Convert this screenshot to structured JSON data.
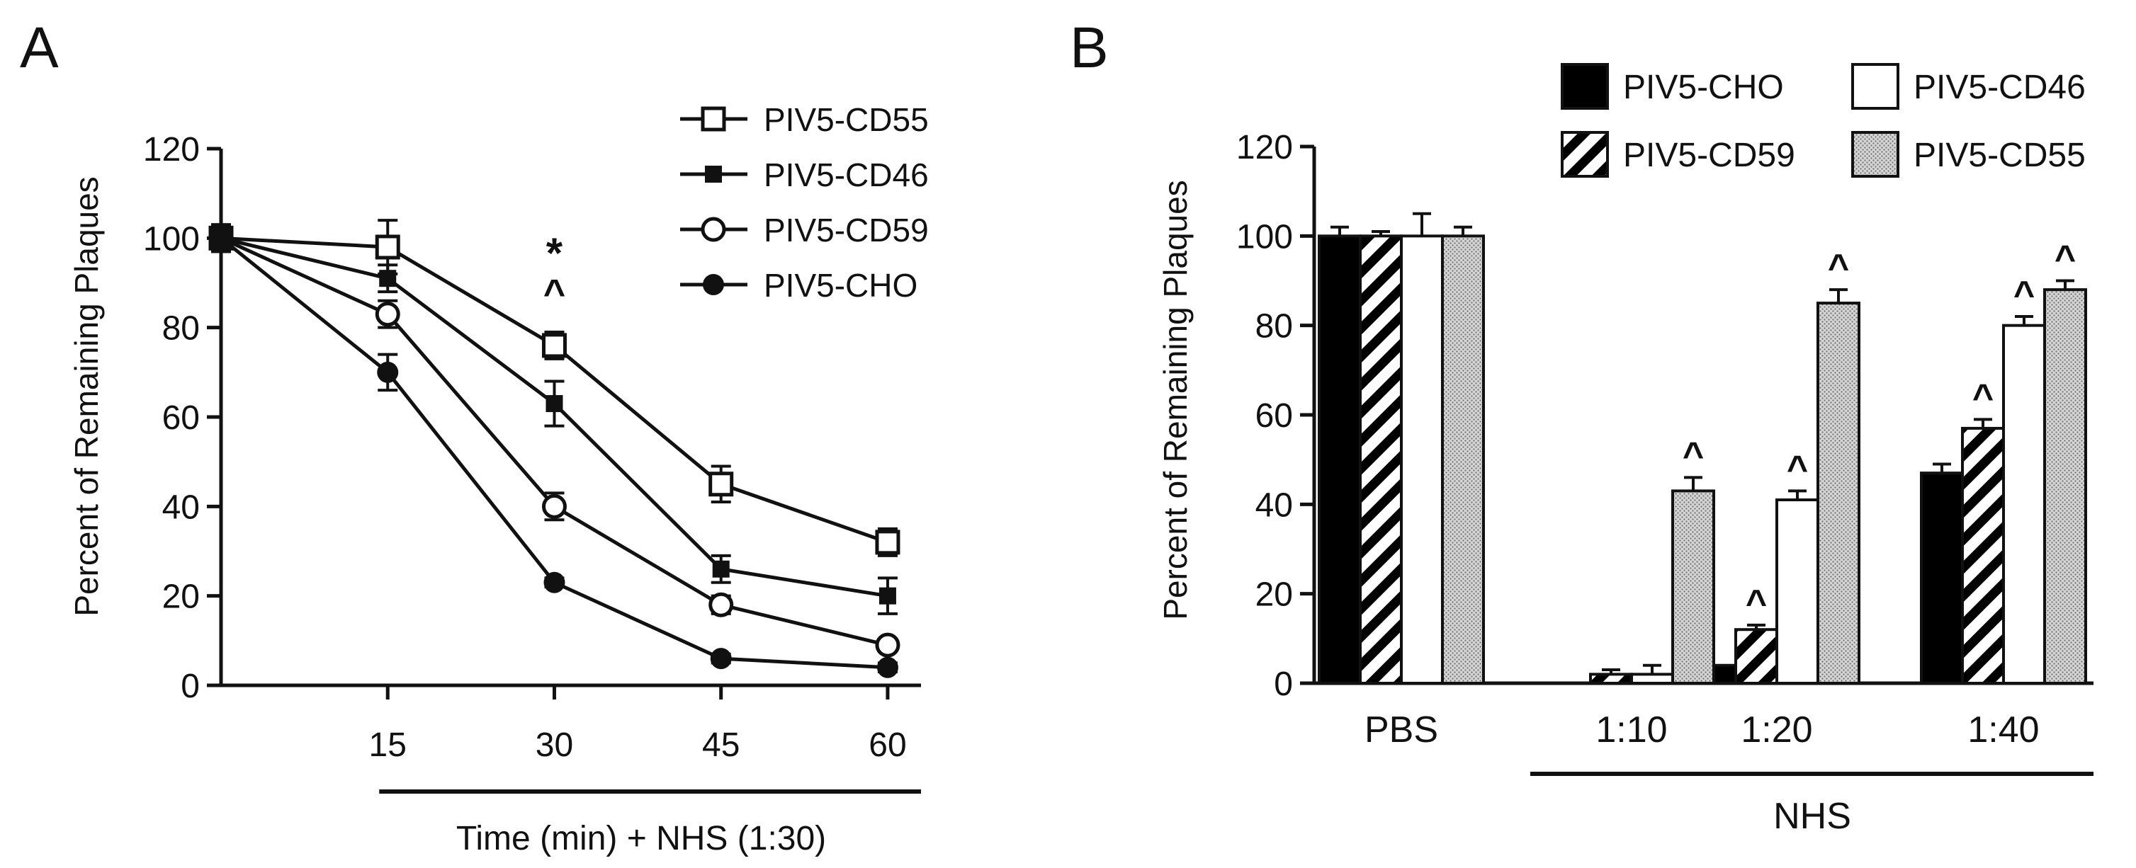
{
  "chart_data": [
    {
      "type": "line",
      "panel_label": "A",
      "ylabel": "Percent of Remaining Plaques",
      "xlabel": "Time (min) + NHS (1:30)",
      "x": [
        0,
        15,
        30,
        45,
        60
      ],
      "x_tick_labels": [
        "15",
        "30",
        "45",
        "60"
      ],
      "y_tick_labels": [
        "0",
        "20",
        "40",
        "60",
        "80",
        "100",
        "120"
      ],
      "xlim": [
        0,
        63
      ],
      "ylim": [
        0,
        120
      ],
      "legend_position": "top-right",
      "series": [
        {
          "name": "PIV5-CD55",
          "marker": "open-square",
          "values": [
            100,
            98,
            76,
            45,
            32
          ],
          "errors": [
            3,
            6,
            3,
            4,
            3
          ]
        },
        {
          "name": "PIV5-CD46",
          "marker": "filled-square",
          "values": [
            100,
            91,
            63,
            26,
            20
          ],
          "errors": [
            3,
            3,
            5,
            3,
            4
          ]
        },
        {
          "name": "PIV5-CD59",
          "marker": "open-circle",
          "values": [
            100,
            83,
            40,
            18,
            9
          ],
          "errors": [
            3,
            3,
            3,
            2,
            1
          ]
        },
        {
          "name": "PIV5-CHO",
          "marker": "filled-circle",
          "values": [
            100,
            70,
            23,
            6,
            4
          ],
          "errors": [
            3,
            4,
            1,
            1,
            1
          ]
        }
      ],
      "annotations": [
        {
          "x": 30,
          "symbol": "*"
        },
        {
          "x": 30,
          "symbol": "^"
        }
      ]
    },
    {
      "type": "bar",
      "panel_label": "B",
      "ylabel": "Percent of Remaining Plaques",
      "xlabel": "NHS",
      "categories": [
        "PBS",
        "1:10",
        "1:20",
        "1:40"
      ],
      "y_tick_labels": [
        "0",
        "20",
        "40",
        "60",
        "80",
        "100",
        "120"
      ],
      "ylim": [
        0,
        120
      ],
      "legend_position": "top",
      "series": [
        {
          "name": "PIV5-CHO",
          "fill": "solid-black",
          "values": [
            100,
            0,
            4,
            47
          ],
          "errors": [
            2,
            0,
            0,
            2
          ],
          "marks": [
            "",
            "",
            "",
            ""
          ]
        },
        {
          "name": "PIV5-CD59",
          "fill": "diagonal-hatch",
          "values": [
            100,
            2,
            12,
            57
          ],
          "errors": [
            1,
            1,
            1,
            2
          ],
          "marks": [
            "",
            "",
            "^",
            "^"
          ]
        },
        {
          "name": "PIV5-CD46",
          "fill": "white",
          "values": [
            100,
            2,
            41,
            80
          ],
          "errors": [
            5,
            2,
            2,
            2
          ],
          "marks": [
            "",
            "",
            "^",
            "^"
          ]
        },
        {
          "name": "PIV5-CD55",
          "fill": "stipple",
          "values": [
            100,
            43,
            85,
            88
          ],
          "errors": [
            2,
            3,
            3,
            2
          ],
          "marks": [
            "",
            "^",
            "^",
            "^"
          ]
        }
      ],
      "legend_order": [
        "PIV5-CHO",
        "PIV5-CD46",
        "PIV5-CD59",
        "PIV5-CD55"
      ]
    }
  ]
}
